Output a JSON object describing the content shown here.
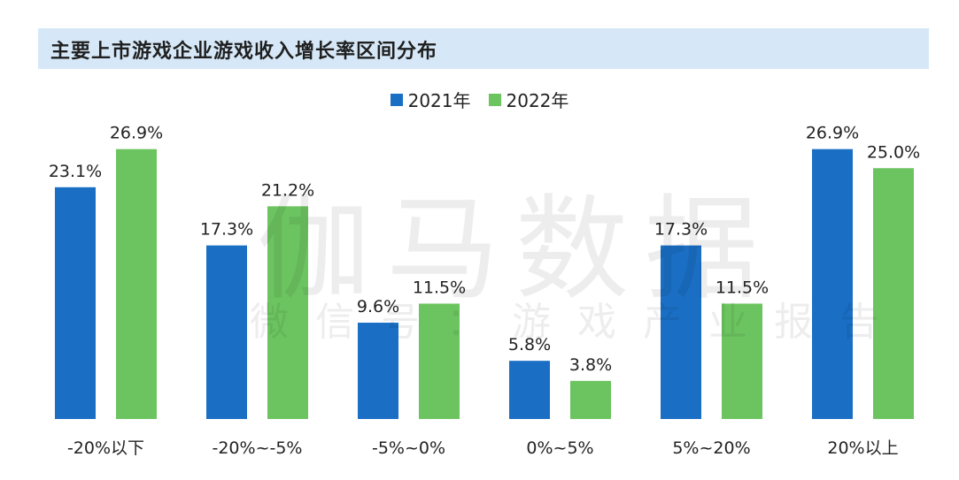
{
  "title": "主要上市游戏企业游戏收入增长率区间分布",
  "watermark": {
    "main": "伽马数据",
    "sub": "微信号：游戏产业报告"
  },
  "colors": {
    "series_2021": "#1a6fc4",
    "series_2022": "#6cc460",
    "title_bg": "#d6e8f7"
  },
  "chart_data": {
    "type": "bar",
    "title": "主要上市游戏企业游戏收入增长率区间分布",
    "xlabel": "",
    "ylabel": "",
    "ylim": [
      0,
      30
    ],
    "grid": false,
    "legend_position": "top",
    "categories": [
      "-20%以下",
      "-20%~-5%",
      "-5%~0%",
      "0%~5%",
      "5%~20%",
      "20%以上"
    ],
    "series": [
      {
        "name": "2021年",
        "values": [
          23.1,
          17.3,
          9.6,
          5.8,
          17.3,
          26.9
        ],
        "labels": [
          "23.1%",
          "17.3%",
          "9.6%",
          "5.8%",
          "17.3%",
          "26.9%"
        ]
      },
      {
        "name": "2022年",
        "values": [
          26.9,
          21.2,
          11.5,
          3.8,
          11.5,
          25.0
        ],
        "labels": [
          "26.9%",
          "21.2%",
          "11.5%",
          "3.8%",
          "11.5%",
          "25.0%"
        ]
      }
    ]
  }
}
